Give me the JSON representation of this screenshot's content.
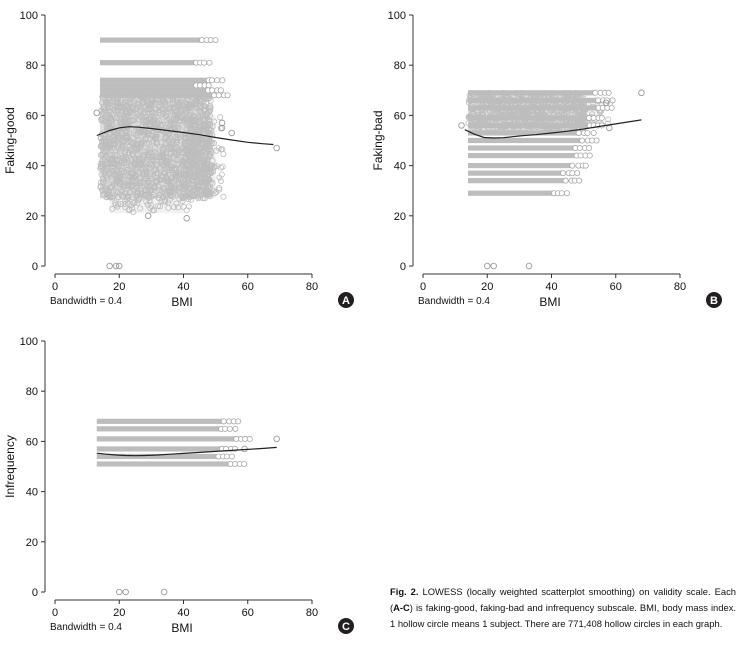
{
  "chart_data": [
    {
      "type": "scatter",
      "panel_label": "A",
      "ylabel": "Faking-good",
      "xlabel": "BMI",
      "bandwidth_text": "Bandwidth = 0.4",
      "xlim": [
        0,
        80
      ],
      "ylim": [
        0,
        100
      ],
      "xticks": [
        0,
        20,
        40,
        60,
        80
      ],
      "yticks": [
        0,
        20,
        40,
        60,
        80,
        100
      ],
      "grid": false,
      "legend": "none",
      "marker_color": "#bdbdbd",
      "line_color": "#222222",
      "scatter_regions": [
        {
          "x": [
            14,
            46
          ],
          "y": [
            27,
            68
          ],
          "density": 1.0
        },
        {
          "x": [
            17,
            40
          ],
          "y": [
            21,
            27
          ],
          "density": 0.35
        },
        {
          "x": [
            40,
            50
          ],
          "y": [
            27,
            60
          ],
          "density": 0.45
        }
      ],
      "horizontal_bands": [
        {
          "y": 90,
          "x_start": 14,
          "x_end": 46
        },
        {
          "y": 81,
          "x_start": 14,
          "x_end": 44
        },
        {
          "y": 74,
          "x_start": 14,
          "x_end": 48
        },
        {
          "y": 72,
          "x_start": 14,
          "x_end": 44
        },
        {
          "y": 70,
          "x_start": 14,
          "x_end": 48
        },
        {
          "y": 68,
          "x_start": 14,
          "x_end": 50
        }
      ],
      "scatter_outliers": [
        {
          "x": 17,
          "y": 0
        },
        {
          "x": 19,
          "y": 0
        },
        {
          "x": 20,
          "y": 0
        },
        {
          "x": 41,
          "y": 19
        },
        {
          "x": 69,
          "y": 47
        },
        {
          "x": 52,
          "y": 55
        },
        {
          "x": 55,
          "y": 53
        },
        {
          "x": 52,
          "y": 57
        },
        {
          "x": 13,
          "y": 61
        },
        {
          "x": 29,
          "y": 20
        }
      ],
      "smooth_line": {
        "x": [
          13,
          17,
          20,
          23,
          26,
          30,
          35,
          40,
          45,
          50,
          55,
          60,
          65,
          68
        ],
        "y": [
          52,
          54,
          55,
          55.5,
          55.3,
          54.8,
          54,
          53.2,
          52.3,
          51.2,
          50.2,
          49.3,
          48.7,
          48.4
        ]
      }
    },
    {
      "type": "scatter",
      "panel_label": "B",
      "ylabel": "Faking-bad",
      "xlabel": "BMI",
      "bandwidth_text": "Bandwidth = 0.4",
      "xlim": [
        0,
        80
      ],
      "ylim": [
        0,
        100
      ],
      "xticks": [
        0,
        20,
        40,
        60,
        80
      ],
      "yticks": [
        0,
        20,
        40,
        60,
        80,
        100
      ],
      "grid": false,
      "legend": "none",
      "marker_color": "#bdbdbd",
      "line_color": "#222222",
      "scatter_regions": [
        {
          "x": [
            14,
            48
          ],
          "y": [
            54,
            69
          ],
          "density": 1.0
        },
        {
          "x": [
            48,
            56
          ],
          "y": [
            56,
            66
          ],
          "density": 0.4
        }
      ],
      "horizontal_bands": [
        {
          "y": 69,
          "x_start": 14,
          "x_end": 54
        },
        {
          "y": 66,
          "x_start": 14,
          "x_end": 55
        },
        {
          "y": 63,
          "x_start": 14,
          "x_end": 55
        },
        {
          "y": 59,
          "x_start": 14,
          "x_end": 52
        },
        {
          "y": 56,
          "x_start": 14,
          "x_end": 52
        },
        {
          "y": 53,
          "x_start": 14,
          "x_end": 49
        },
        {
          "y": 50,
          "x_start": 14,
          "x_end": 50
        },
        {
          "y": 47,
          "x_start": 14,
          "x_end": 48
        },
        {
          "y": 44,
          "x_start": 14,
          "x_end": 48
        },
        {
          "y": 40,
          "x_start": 14,
          "x_end": 47
        },
        {
          "y": 37,
          "x_start": 14,
          "x_end": 44
        },
        {
          "y": 34,
          "x_start": 14,
          "x_end": 45
        },
        {
          "y": 29,
          "x_start": 14,
          "x_end": 41
        }
      ],
      "scatter_outliers": [
        {
          "x": 20,
          "y": 0
        },
        {
          "x": 22,
          "y": 0
        },
        {
          "x": 33,
          "y": 0
        },
        {
          "x": 68,
          "y": 69
        },
        {
          "x": 57,
          "y": 65
        },
        {
          "x": 58,
          "y": 55
        },
        {
          "x": 12,
          "y": 56
        }
      ],
      "smooth_line": {
        "x": [
          13,
          16,
          19,
          22,
          25,
          28,
          31,
          35,
          40,
          45,
          50,
          55,
          60,
          65,
          68
        ],
        "y": [
          54.3,
          52.5,
          51.2,
          51.0,
          51.1,
          51.5,
          51.9,
          52.3,
          53.0,
          53.7,
          54.6,
          55.6,
          56.6,
          57.6,
          58.2
        ]
      }
    },
    {
      "type": "scatter",
      "panel_label": "C",
      "ylabel": "Infrequency",
      "xlabel": "BMI",
      "bandwidth_text": "Bandwidth = 0.4",
      "xlim": [
        0,
        80
      ],
      "ylim": [
        0,
        100
      ],
      "xticks": [
        0,
        20,
        40,
        60,
        80
      ],
      "yticks": [
        0,
        20,
        40,
        60,
        80,
        100
      ],
      "grid": false,
      "legend": "none",
      "marker_color": "#bdbdbd",
      "line_color": "#222222",
      "scatter_regions": [],
      "horizontal_bands": [
        {
          "y": 68,
          "x_start": 13,
          "x_end": 53
        },
        {
          "y": 65,
          "x_start": 13,
          "x_end": 52
        },
        {
          "y": 61,
          "x_start": 13,
          "x_end": 57
        },
        {
          "y": 57,
          "x_start": 13,
          "x_end": 52
        },
        {
          "y": 54,
          "x_start": 13,
          "x_end": 51
        },
        {
          "y": 51,
          "x_start": 13,
          "x_end": 55
        }
      ],
      "scatter_outliers": [
        {
          "x": 20,
          "y": 0
        },
        {
          "x": 22,
          "y": 0
        },
        {
          "x": 34,
          "y": 0
        },
        {
          "x": 69,
          "y": 61
        },
        {
          "x": 59,
          "y": 57
        }
      ],
      "smooth_line": {
        "x": [
          13,
          16,
          19,
          22,
          25,
          28,
          32,
          36,
          40,
          45,
          50,
          55,
          60,
          65,
          69
        ],
        "y": [
          55.3,
          54.9,
          54.6,
          54.4,
          54.3,
          54.4,
          54.6,
          54.9,
          55.2,
          55.6,
          56.0,
          56.4,
          56.8,
          57.2,
          57.6
        ]
      }
    }
  ],
  "caption": {
    "label": "Fig. 2.",
    "text_1": " LOWESS (locally weighted scatterplot smoothing) on validity scale. Each (",
    "range": "A-C",
    "text_2": ") is faking-good, faking-bad and infrequency subscale. BMI, body mass index. 1 hollow circle means 1 subject. There are 771,408 hollow circles in each graph."
  }
}
